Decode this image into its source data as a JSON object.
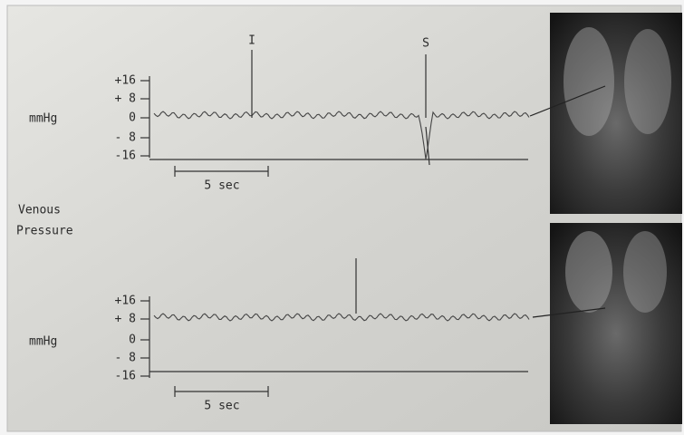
{
  "label": [
    "Venous",
    "Pressure"
  ],
  "panels": [
    {
      "unit": "mmHg",
      "ticks": [
        "+16",
        "+ 8",
        "0",
        "- 8",
        "-16"
      ],
      "scale": "5 sec",
      "markers": [
        "I",
        "S"
      ]
    },
    {
      "unit": "mmHg",
      "ticks": [
        "+16",
        "+ 8",
        "0",
        "- 8",
        "-16"
      ],
      "scale": "5 sec"
    }
  ]
}
